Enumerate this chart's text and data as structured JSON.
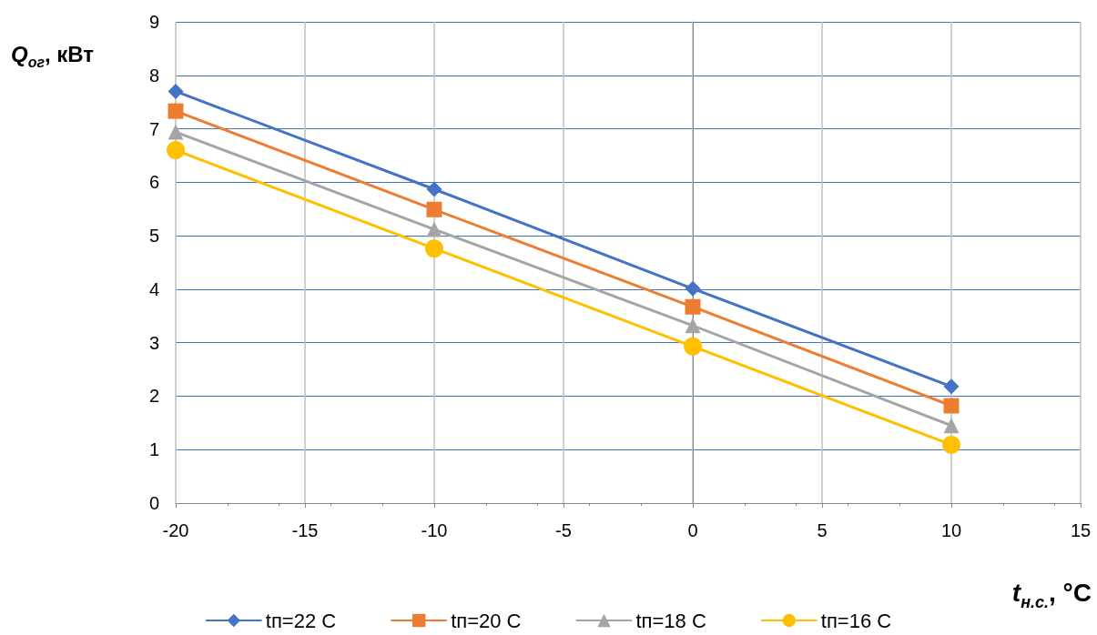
{
  "chart_data": {
    "type": "line",
    "xlabel": "t$_{н.с.}$, °C",
    "ylabel": "Q$_{ог}$, кВт",
    "x": [
      -20,
      -10,
      0,
      10
    ],
    "xlim": [
      -20,
      15
    ],
    "xticks": [
      -20,
      -15,
      -10,
      -5,
      0,
      5,
      10,
      15
    ],
    "ylim": [
      0,
      9
    ],
    "yticks": [
      0,
      1,
      2,
      3,
      4,
      5,
      6,
      7,
      8,
      9
    ],
    "grid": true,
    "legend": "bottom",
    "line_style": "solid",
    "series": [
      {
        "name": "tп=22 C",
        "color": "#4472c4",
        "marker": "diamond",
        "values": [
          7.7,
          5.87,
          4.01,
          2.18
        ]
      },
      {
        "name": "tп=20 C",
        "color": "#ed7d31",
        "marker": "square",
        "values": [
          7.33,
          5.49,
          3.67,
          1.82
        ]
      },
      {
        "name": "tп=18 C",
        "color": "#a5a5a5",
        "marker": "triangle",
        "values": [
          6.94,
          5.12,
          3.32,
          1.45
        ]
      },
      {
        "name": "tп=16 C",
        "color": "#ffc000",
        "marker": "circle",
        "values": [
          6.6,
          4.76,
          2.93,
          1.09
        ]
      }
    ]
  }
}
